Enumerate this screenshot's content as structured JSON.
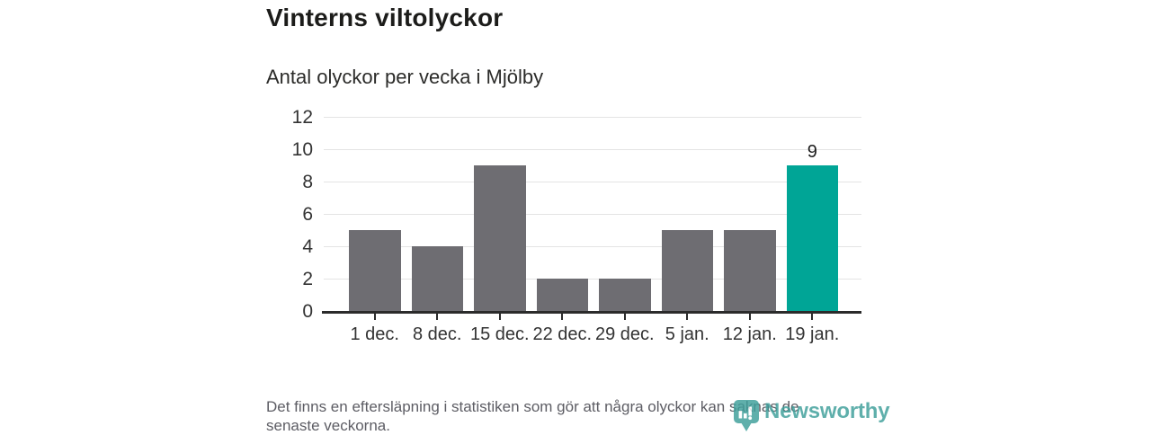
{
  "title": "Vinterns viltolyckor",
  "subtitle": "Antal olyckor per vecka i Mjölby",
  "footer": {
    "lines": [
      "Det finns en eftersläpning i statistiken som gör att några olyckor kan saknas de",
      "senaste veckorna."
    ]
  },
  "logo": {
    "text": "Newsworthy",
    "icon": "newsworthy-speech-bubble-bar-chart-icon",
    "color": "#3f9f9b"
  },
  "colors": {
    "bar_default": "#6e6d72",
    "bar_highlight": "#00a596",
    "gridline": "#e4e4e4",
    "axis_line": "#2b2b2b",
    "axis_text": "#333333",
    "title_text": "#1c1c1a",
    "footer_text": "#5d5d64"
  },
  "chart_data": {
    "type": "bar",
    "title": "Vinterns viltolyckor",
    "subtitle": "Antal olyckor per vecka i Mjölby",
    "categories": [
      "1 dec.",
      "8 dec.",
      "15 dec.",
      "22 dec.",
      "29 dec.",
      "5 jan.",
      "12 jan.",
      "19 jan."
    ],
    "values": [
      5,
      4,
      9,
      2,
      2,
      5,
      5,
      9
    ],
    "bar_labels": [
      "",
      "",
      "",
      "",
      "",
      "",
      "",
      "9"
    ],
    "highlighted_index": 7,
    "xlabel": "",
    "ylabel": "",
    "ylim": [
      0,
      12
    ],
    "yticks": [
      0,
      2,
      4,
      6,
      8,
      10,
      12
    ],
    "grid": true,
    "legend": false
  }
}
